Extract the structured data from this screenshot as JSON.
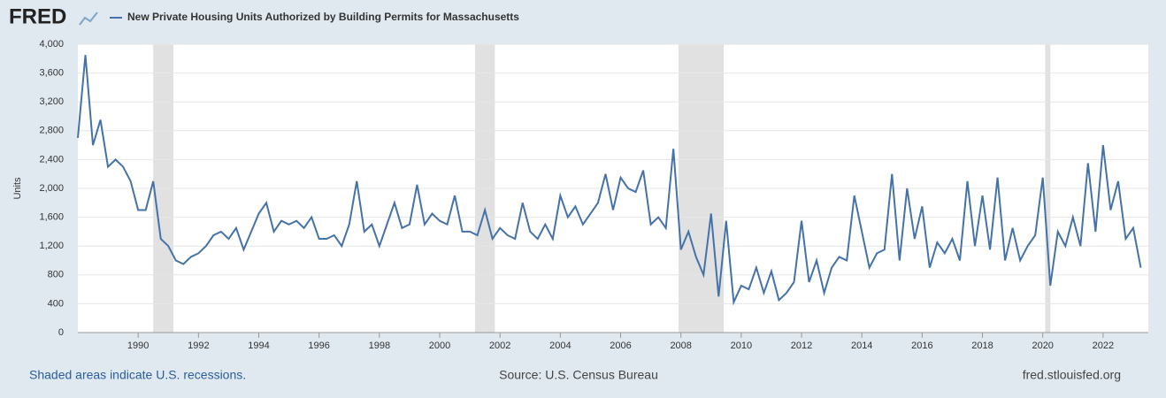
{
  "logo": "FRED",
  "chart_data": {
    "type": "line",
    "y_label": "Units",
    "series": [
      {
        "name": "New Private Housing Units Authorized by Building Permits for Massachusetts",
        "color": "#4572a7",
        "values": [
          2700,
          3850,
          2600,
          2950,
          2300,
          2400,
          2300,
          2100,
          1700,
          1700,
          2100,
          1300,
          1200,
          1000,
          950,
          1050,
          1100,
          1200,
          1350,
          1400,
          1300,
          1450,
          1150,
          1400,
          1650,
          1800,
          1400,
          1550,
          1500,
          1550,
          1450,
          1600,
          1300,
          1300,
          1350,
          1200,
          1500,
          2100,
          1400,
          1500,
          1200,
          1500,
          1800,
          1450,
          1500,
          2050,
          1500,
          1650,
          1550,
          1500,
          1900,
          1400,
          1400,
          1350,
          1700,
          1300,
          1450,
          1350,
          1300,
          1800,
          1400,
          1300,
          1500,
          1300,
          1900,
          1600,
          1750,
          1500,
          1650,
          1800,
          2200,
          1700,
          2150,
          2000,
          1950,
          2250,
          1500,
          1600,
          1450,
          2550,
          1150,
          1400,
          1050,
          800,
          1650,
          500,
          1550,
          420,
          650,
          600,
          900,
          550,
          850,
          450,
          550,
          700,
          1550,
          700,
          1000,
          550,
          900,
          1050,
          1000,
          1900,
          1400,
          900,
          1100,
          1150,
          2200,
          1000,
          2000,
          1300,
          1750,
          900,
          1250,
          1100,
          1300,
          1000,
          2100,
          1200,
          1900,
          1150,
          2150,
          1000,
          1450,
          1000,
          1200,
          1350,
          2150,
          650,
          1400,
          1200,
          1600,
          1200,
          2350,
          1400,
          2600,
          1700,
          2100,
          1300,
          1450,
          900
        ]
      }
    ],
    "x": [
      1988,
      1988.25,
      1988.5,
      1988.75,
      1989,
      1989.25,
      1989.5,
      1989.75,
      1990,
      1990.25,
      1990.5,
      1990.75,
      1991,
      1991.25,
      1991.5,
      1991.75,
      1992,
      1992.25,
      1992.5,
      1992.75,
      1993,
      1993.25,
      1993.5,
      1993.75,
      1994,
      1994.25,
      1994.5,
      1994.75,
      1995,
      1995.25,
      1995.5,
      1995.75,
      1996,
      1996.25,
      1996.5,
      1996.75,
      1997,
      1997.25,
      1997.5,
      1997.75,
      1998,
      1998.25,
      1998.5,
      1998.75,
      1999,
      1999.25,
      1999.5,
      1999.75,
      2000,
      2000.25,
      2000.5,
      2000.75,
      2001,
      2001.25,
      2001.5,
      2001.75,
      2002,
      2002.25,
      2002.5,
      2002.75,
      2003,
      2003.25,
      2003.5,
      2003.75,
      2004,
      2004.25,
      2004.5,
      2004.75,
      2005,
      2005.25,
      2005.5,
      2005.75,
      2006,
      2006.25,
      2006.5,
      2006.75,
      2007,
      2007.25,
      2007.5,
      2007.75,
      2008,
      2008.25,
      2008.5,
      2008.75,
      2009,
      2009.25,
      2009.5,
      2009.75,
      2010,
      2010.25,
      2010.5,
      2010.75,
      2011,
      2011.25,
      2011.5,
      2011.75,
      2012,
      2012.25,
      2012.5,
      2012.75,
      2013,
      2013.25,
      2013.5,
      2013.75,
      2014,
      2014.25,
      2014.5,
      2014.75,
      2015,
      2015.25,
      2015.5,
      2015.75,
      2016,
      2016.25,
      2016.5,
      2016.75,
      2017,
      2017.25,
      2017.5,
      2017.75,
      2018,
      2018.25,
      2018.5,
      2018.75,
      2019,
      2019.25,
      2019.5,
      2019.75,
      2020,
      2020.25,
      2020.5,
      2020.75,
      2021,
      2021.25,
      2021.5,
      2021.75,
      2022,
      2022.25,
      2022.5,
      2022.75,
      2023,
      2023.25
    ],
    "xlim": [
      1988,
      2023.5
    ],
    "xticks": [
      1990,
      1992,
      1994,
      1996,
      1998,
      2000,
      2002,
      2004,
      2006,
      2008,
      2010,
      2012,
      2014,
      2016,
      2018,
      2020,
      2022
    ],
    "ylim": [
      0,
      4000
    ],
    "yticks": [
      0,
      400,
      800,
      {
        "value": 1200,
        "label": "1,200"
      },
      {
        "value": 1600,
        "label": "1,600"
      },
      {
        "value": 2000,
        "label": "2,000"
      },
      {
        "value": 2400,
        "label": "2,400"
      },
      {
        "value": 2800,
        "label": "2,800"
      },
      {
        "value": 3200,
        "label": "3,200"
      },
      {
        "value": 3600,
        "label": "3,600"
      },
      {
        "value": 4000,
        "label": "4,000"
      }
    ],
    "grid": true,
    "recessions": [
      [
        1990.5,
        1991.17
      ],
      [
        2001.17,
        2001.83
      ],
      [
        2007.92,
        2009.42
      ],
      [
        2020.08,
        2020.25
      ]
    ],
    "recession_note": "Shaded areas indicate U.S. recessions.",
    "source": "Source: U.S. Census Bureau",
    "site": "fred.stlouisfed.org"
  }
}
